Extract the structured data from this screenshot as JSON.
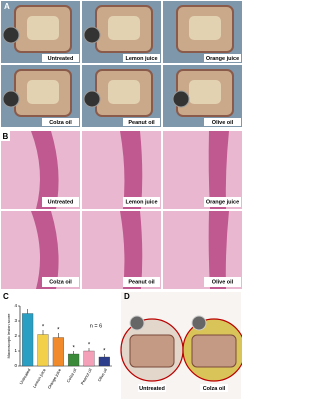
{
  "panels": {
    "a": {
      "label": "A",
      "images": [
        "Untreated",
        "Lemon juice",
        "Orange juice",
        "Colza oil",
        "Peanut oil",
        "Olive oil"
      ]
    },
    "b": {
      "label": "B",
      "images": [
        "Untreated",
        "Lemon juice",
        "Orange juice",
        "Colza oil",
        "Peanut oil",
        "Olive oil"
      ]
    },
    "d": {
      "label": "D",
      "images": [
        "Untreated",
        "Colza oil"
      ]
    }
  },
  "chart_data": {
    "type": "bar",
    "panel_label": "C",
    "y_label": "Macroscopic lesion score",
    "annotation": "n = 6",
    "categories": [
      "Untreated",
      "Lemon juice",
      "Orange juice",
      "Colza oil",
      "Peanut oil",
      "Olive oil"
    ],
    "values": [
      3.5,
      2.1,
      1.9,
      0.8,
      1.0,
      0.6
    ],
    "errors": [
      0.3,
      0.3,
      0.3,
      0.2,
      0.2,
      0.2
    ],
    "significance": [
      null,
      "*",
      "*",
      "*",
      "*",
      "*"
    ],
    "colors": [
      "#2a9fc4",
      "#f2d04a",
      "#f08a2a",
      "#3a8a3a",
      "#f4a0b8",
      "#2c3e8c"
    ],
    "ylim": [
      0,
      4
    ],
    "yticks": [
      0,
      1,
      2,
      3,
      4
    ]
  }
}
